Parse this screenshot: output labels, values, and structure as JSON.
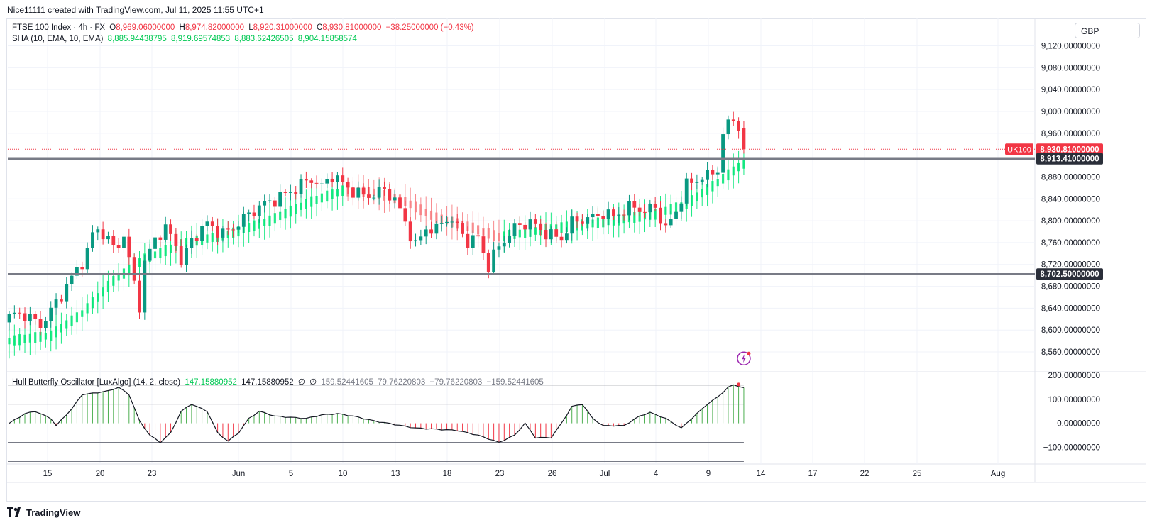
{
  "caption": "Nice11111 created with TradingView.com, Jul 11, 2025 11:55 UTC+1",
  "currency": "GBP",
  "logo_text": "TradingView",
  "legend_main": {
    "symbol": "FTSE 100 Index · 4h · FX",
    "o_label": "O",
    "o": "8,969.06000000",
    "h_label": "H",
    "h": "8,974.82000000",
    "l_label": "L",
    "l": "8,920.31000000",
    "c_label": "C",
    "c": "8,930.81000000",
    "change": "−38.25000000 (−0.43%)"
  },
  "legend_sha": {
    "name": "SHA (10, EMA, 10, EMA)",
    "v1": "8,885.94438795",
    "v2": "8,919.69574853",
    "v3": "8,883.62426505",
    "v4": "8,904.15858574"
  },
  "legend_osc": {
    "name": "Hull Butterfly Oscillator [LuxAlgo] (14, 2, close)",
    "v1": "147.15880952",
    "v2": "147.15880952",
    "v3": "∅",
    "v4": "∅",
    "v5": "159.52441605",
    "v6": "79.76220803",
    "v7": "−79.76220803",
    "v8": "−159.52441605"
  },
  "price_labels": {
    "symbol_tag": "UK100",
    "last_price": "8,930.81000000",
    "upper_line": "8,913.41000000",
    "lower_line": "8,702.50000000"
  },
  "colors": {
    "up": "#089981",
    "down": "#f23645",
    "sha_up": "#00e676",
    "sha_down": "#f77c80",
    "hline": "#787b86",
    "grid": "#f0f3fa",
    "osc_up": "#4caf50",
    "osc_down": "#f23645"
  },
  "icons": [
    "lightning-icon",
    "tradingview-logo-icon"
  ],
  "chart_data": [
    {
      "type": "candlestick",
      "title": "FTSE 100 Index · 4h · FX",
      "y_axis_ticks": [
        "9,120.00000000",
        "9,080.00000000",
        "9,040.00000000",
        "9,000.00000000",
        "8,960.00000000",
        "8,880.00000000",
        "8,840.00000000",
        "8,800.00000000",
        "8,760.00000000",
        "8,720.00000000",
        "8,680.00000000",
        "8,640.00000000",
        "8,600.00000000",
        "8,560.00000000"
      ],
      "y_tick_values": [
        9120,
        9080,
        9040,
        9000,
        8960,
        8880,
        8840,
        8800,
        8760,
        8720,
        8680,
        8640,
        8600,
        8560
      ],
      "x_axis_ticks": [
        "15",
        "20",
        "23",
        "Jun",
        "5",
        "10",
        "13",
        "18",
        "23",
        "26",
        "Jul",
        "4",
        "9",
        "14",
        "17",
        "22",
        "25",
        "Aug"
      ],
      "ylim": [
        8525,
        9170
      ],
      "horizontal_lines": [
        8913.41,
        8702.5
      ],
      "last_price": 8930.81,
      "close_path_points": [
        [
          0,
          8620
        ],
        [
          3,
          8625
        ],
        [
          6,
          8615
        ],
        [
          8,
          8640
        ],
        [
          10,
          8665
        ],
        [
          12,
          8690
        ],
        [
          14,
          8720
        ],
        [
          15,
          8740
        ],
        [
          16,
          8775
        ],
        [
          17,
          8790
        ],
        [
          18,
          8780
        ],
        [
          19,
          8770
        ],
        [
          20,
          8755
        ],
        [
          22,
          8770
        ],
        [
          24,
          8680
        ],
        [
          25,
          8640
        ],
        [
          26,
          8715
        ],
        [
          28,
          8770
        ],
        [
          30,
          8790
        ],
        [
          32,
          8765
        ],
        [
          33,
          8725
        ],
        [
          35,
          8760
        ],
        [
          38,
          8790
        ],
        [
          41,
          8780
        ],
        [
          44,
          8800
        ],
        [
          47,
          8815
        ],
        [
          50,
          8830
        ],
        [
          52,
          8845
        ],
        [
          54,
          8860
        ],
        [
          56,
          8870
        ],
        [
          58,
          8875
        ],
        [
          60,
          8855
        ],
        [
          62,
          8880
        ],
        [
          64,
          8870
        ],
        [
          66,
          8860
        ],
        [
          68,
          8850
        ],
        [
          70,
          8845
        ],
        [
          72,
          8850
        ],
        [
          74,
          8835
        ],
        [
          76,
          8800
        ],
        [
          78,
          8760
        ],
        [
          80,
          8790
        ],
        [
          82,
          8780
        ],
        [
          84,
          8800
        ],
        [
          86,
          8785
        ],
        [
          88,
          8765
        ],
        [
          90,
          8775
        ],
        [
          92,
          8720
        ],
        [
          94,
          8750
        ],
        [
          96,
          8770
        ],
        [
          98,
          8790
        ],
        [
          100,
          8800
        ],
        [
          102,
          8790
        ],
        [
          104,
          8775
        ],
        [
          106,
          8765
        ],
        [
          108,
          8790
        ],
        [
          110,
          8800
        ],
        [
          112,
          8810
        ],
        [
          114,
          8820
        ],
        [
          116,
          8810
        ],
        [
          118,
          8815
        ],
        [
          120,
          8820
        ],
        [
          122,
          8815
        ],
        [
          124,
          8830
        ],
        [
          126,
          8790
        ],
        [
          128,
          8820
        ],
        [
          130,
          8860
        ],
        [
          132,
          8870
        ],
        [
          134,
          8880
        ],
        [
          136,
          8900
        ],
        [
          137,
          8960
        ],
        [
          138,
          8985
        ],
        [
          139,
          8990
        ],
        [
          140,
          8975
        ],
        [
          141,
          8930.81
        ]
      ],
      "sha_path_points": [
        [
          0,
          8580
        ],
        [
          8,
          8590
        ],
        [
          14,
          8630
        ],
        [
          20,
          8690
        ],
        [
          26,
          8730
        ],
        [
          34,
          8760
        ],
        [
          42,
          8775
        ],
        [
          50,
          8800
        ],
        [
          58,
          8835
        ],
        [
          64,
          8855
        ],
        [
          70,
          8852
        ],
        [
          76,
          8835
        ],
        [
          82,
          8805
        ],
        [
          88,
          8790
        ],
        [
          94,
          8770
        ],
        [
          100,
          8780
        ],
        [
          108,
          8790
        ],
        [
          116,
          8800
        ],
        [
          124,
          8812
        ],
        [
          130,
          8830
        ],
        [
          136,
          8870
        ],
        [
          141,
          8905
        ]
      ],
      "candle_count": 142
    },
    {
      "type": "histogram",
      "title": "Hull Butterfly Oscillator [LuxAlgo] (14, 2, close)",
      "y_axis_ticks": [
        "200.00000000",
        "100.00000000",
        "0.00000000",
        "−100.00000000"
      ],
      "y_tick_values": [
        200,
        100,
        0,
        -100
      ],
      "ylim": [
        -170,
        215
      ],
      "levels": [
        159.52441605,
        79.76220803,
        -79.76220803,
        -159.52441605
      ],
      "last_value": 147.15880952,
      "path_points": [
        [
          0,
          0
        ],
        [
          3,
          40
        ],
        [
          5,
          50
        ],
        [
          8,
          20
        ],
        [
          9,
          -10
        ],
        [
          12,
          60
        ],
        [
          14,
          120
        ],
        [
          16,
          125
        ],
        [
          19,
          135
        ],
        [
          21,
          150
        ],
        [
          23,
          120
        ],
        [
          25,
          10
        ],
        [
          27,
          -50
        ],
        [
          29,
          -80
        ],
        [
          31,
          -40
        ],
        [
          33,
          50
        ],
        [
          35,
          80
        ],
        [
          38,
          50
        ],
        [
          40,
          -40
        ],
        [
          42,
          -75
        ],
        [
          44,
          -40
        ],
        [
          46,
          20
        ],
        [
          48,
          50
        ],
        [
          51,
          30
        ],
        [
          54,
          25
        ],
        [
          57,
          20
        ],
        [
          60,
          35
        ],
        [
          63,
          40
        ],
        [
          66,
          30
        ],
        [
          70,
          10
        ],
        [
          74,
          -5
        ],
        [
          78,
          -20
        ],
        [
          82,
          -25
        ],
        [
          86,
          -30
        ],
        [
          90,
          -50
        ],
        [
          94,
          -80
        ],
        [
          97,
          -50
        ],
        [
          99,
          0
        ],
        [
          101,
          -60
        ],
        [
          104,
          -60
        ],
        [
          106,
          0
        ],
        [
          108,
          70
        ],
        [
          110,
          80
        ],
        [
          112,
          20
        ],
        [
          114,
          -10
        ],
        [
          118,
          -10
        ],
        [
          121,
          30
        ],
        [
          123,
          45
        ],
        [
          126,
          20
        ],
        [
          129,
          -20
        ],
        [
          131,
          20
        ],
        [
          134,
          80
        ],
        [
          136,
          110
        ],
        [
          138,
          150
        ],
        [
          139,
          160
        ],
        [
          140,
          155
        ],
        [
          141,
          147.16
        ]
      ]
    }
  ]
}
